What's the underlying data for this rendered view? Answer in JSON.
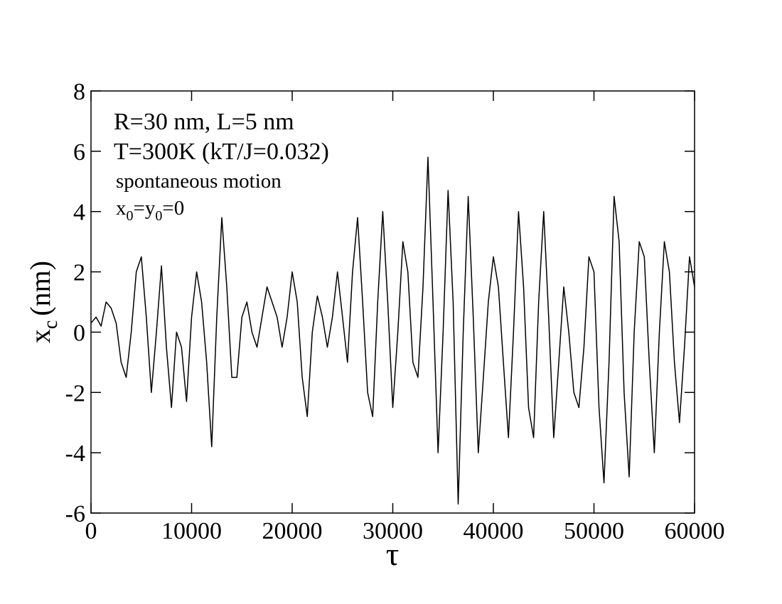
{
  "chart_data": {
    "type": "line",
    "xlabel": "τ",
    "ylabel_parts": [
      "x",
      "c",
      "(nm)"
    ],
    "annotations": [
      "R=30 nm, L=5 nm",
      "T=300K (kT/J=0.032)",
      "spontaneous motion"
    ],
    "annotation_parts": [
      "x",
      "0",
      "=y",
      "0",
      "=0"
    ],
    "color": "#000000",
    "x": [
      0,
      500,
      1000,
      1500,
      2000,
      2500,
      3000,
      3500,
      4000,
      4500,
      5000,
      5500,
      6000,
      6500,
      7000,
      7500,
      8000,
      8500,
      9000,
      9500,
      10000,
      10500,
      11000,
      11500,
      12000,
      12500,
      13000,
      13500,
      14000,
      14500,
      15000,
      15500,
      16000,
      16500,
      17000,
      17500,
      18000,
      18500,
      19000,
      19500,
      20000,
      20500,
      21000,
      21500,
      22000,
      22500,
      23000,
      23500,
      24000,
      24500,
      25000,
      25500,
      26000,
      26500,
      27000,
      27500,
      28000,
      28500,
      29000,
      29500,
      30000,
      30500,
      31000,
      31500,
      32000,
      32500,
      33000,
      33500,
      34000,
      34500,
      35000,
      35500,
      36000,
      36500,
      37000,
      37500,
      38000,
      38500,
      39000,
      39500,
      40000,
      40500,
      41000,
      41500,
      42000,
      42500,
      43000,
      43500,
      44000,
      44500,
      45000,
      45500,
      46000,
      46500,
      47000,
      47500,
      48000,
      48500,
      49000,
      49500,
      50000,
      50500,
      51000,
      51500,
      52000,
      52500,
      53000,
      53500,
      54000,
      54500,
      55000,
      55500,
      56000,
      56500,
      57000,
      57500,
      58000,
      58500,
      59000,
      59500,
      60000
    ],
    "values": [
      0.3,
      0.5,
      0.2,
      1.0,
      0.8,
      0.3,
      -1.0,
      -1.5,
      0,
      2.0,
      2.5,
      0.5,
      -2.0,
      0,
      2.2,
      -0.5,
      -2.5,
      0,
      -0.5,
      -2.3,
      0.5,
      2.0,
      1.0,
      -1.0,
      -3.8,
      0.5,
      3.8,
      1.5,
      -1.5,
      -1.5,
      0.5,
      1.0,
      0,
      -0.5,
      0.5,
      1.5,
      1.0,
      0.5,
      -0.5,
      0.5,
      2.0,
      1.0,
      -1.5,
      -2.8,
      0,
      1.2,
      0.5,
      -0.5,
      0.5,
      2.0,
      0.5,
      -1.0,
      2.0,
      3.8,
      1.0,
      -2.0,
      -2.8,
      1.0,
      4.0,
      1.0,
      -2.5,
      0,
      3.0,
      2.0,
      -1.0,
      -1.5,
      1.5,
      5.8,
      1.0,
      -4.0,
      0,
      4.7,
      1.0,
      -5.7,
      0,
      4.5,
      0.5,
      -4.0,
      -1.5,
      1.0,
      2.5,
      1.5,
      -1.0,
      -3.5,
      0,
      4.0,
      1.5,
      -2.5,
      -3.5,
      1.0,
      4.0,
      0.5,
      -3.5,
      -1.0,
      1.5,
      0,
      -2.0,
      -2.5,
      -0.5,
      2.5,
      2.0,
      -2.5,
      -5.0,
      -1.0,
      4.5,
      3.0,
      -2.0,
      -4.8,
      0,
      3.0,
      2.5,
      -1.0,
      -4.0,
      0,
      3.0,
      2.0,
      -1.0,
      -3.0,
      -0.5,
      2.5,
      1.5
    ],
    "xlim": [
      0,
      60000
    ],
    "ylim": [
      -6,
      8
    ],
    "xticks": [
      0,
      10000,
      20000,
      30000,
      40000,
      50000,
      60000
    ],
    "yticks": [
      -6,
      -4,
      -2,
      0,
      2,
      4,
      6,
      8
    ]
  }
}
